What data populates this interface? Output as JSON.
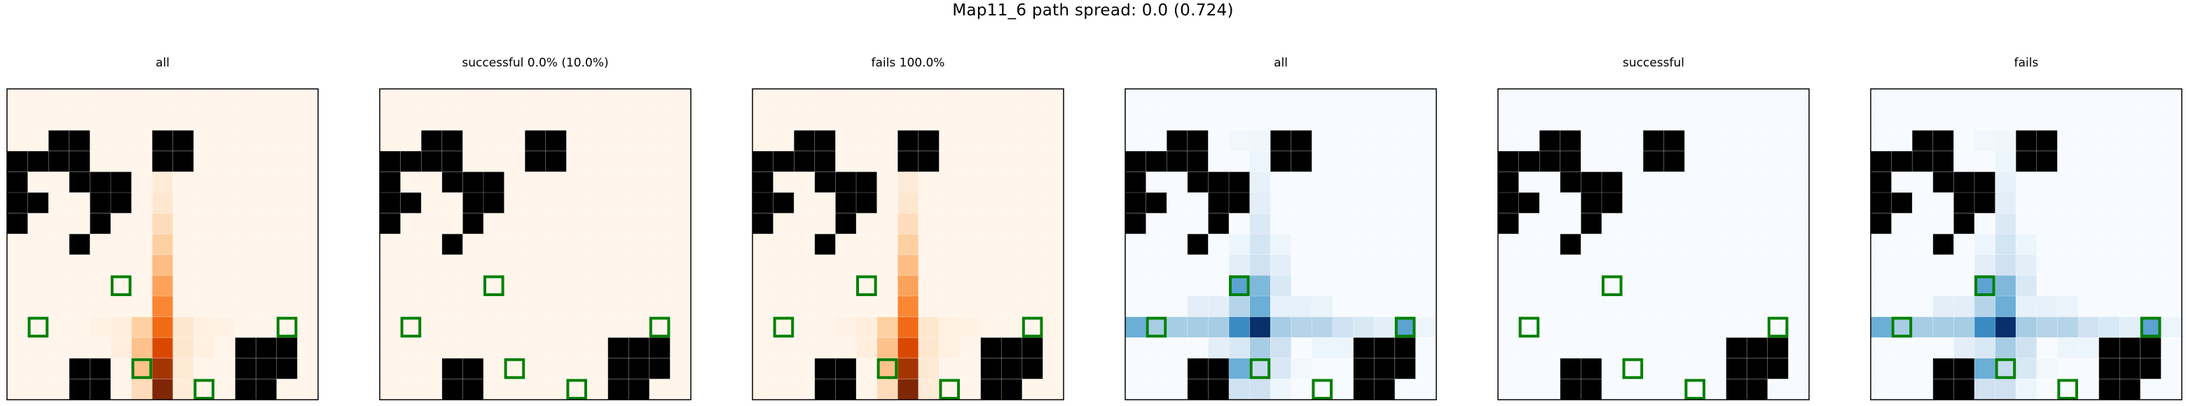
{
  "figure": {
    "suptitle": "Map11_6 path spread: 0.0 (0.724)"
  },
  "colors": {
    "wall": "#000000",
    "goal_outline": "#008000",
    "grid_line": "#ffffff",
    "oranges": [
      "#fff5eb",
      "#fee6ce",
      "#fdd0a2",
      "#fdae6b",
      "#fd8d3c",
      "#f16913",
      "#d94801",
      "#a63603",
      "#7f2704"
    ],
    "blues": [
      "#f7fbff",
      "#deebf7",
      "#c6dbef",
      "#9ecae1",
      "#6baed6",
      "#4292c6",
      "#2171b5",
      "#08519c",
      "#08306b"
    ]
  },
  "chart_data": {
    "type": "heatmap",
    "grid_size": [
      15,
      15
    ],
    "walls": [
      [
        2,
        2
      ],
      [
        2,
        3
      ],
      [
        2,
        7
      ],
      [
        2,
        8
      ],
      [
        3,
        0
      ],
      [
        3,
        1
      ],
      [
        3,
        2
      ],
      [
        3,
        3
      ],
      [
        3,
        7
      ],
      [
        3,
        8
      ],
      [
        4,
        0
      ],
      [
        4,
        3
      ],
      [
        4,
        4
      ],
      [
        4,
        5
      ],
      [
        5,
        0
      ],
      [
        5,
        1
      ],
      [
        5,
        4
      ],
      [
        5,
        5
      ],
      [
        6,
        0
      ],
      [
        6,
        4
      ],
      [
        7,
        3
      ],
      [
        12,
        11
      ],
      [
        12,
        12
      ],
      [
        12,
        13
      ],
      [
        13,
        3
      ],
      [
        13,
        4
      ],
      [
        13,
        11
      ],
      [
        13,
        12
      ],
      [
        13,
        13
      ],
      [
        14,
        3
      ],
      [
        14,
        4
      ],
      [
        14,
        11
      ],
      [
        14,
        12
      ]
    ],
    "goals": [
      [
        9,
        5
      ],
      [
        11,
        1
      ],
      [
        11,
        13
      ],
      [
        13,
        6
      ],
      [
        14,
        9
      ]
    ],
    "panels": [
      {
        "title": "all",
        "cmap": "oranges",
        "show_goals": true,
        "cells": [
          [
            3,
            7,
            0.05
          ],
          [
            4,
            7,
            0.08
          ],
          [
            5,
            7,
            0.12
          ],
          [
            6,
            7,
            0.18
          ],
          [
            7,
            7,
            0.25
          ],
          [
            8,
            7,
            0.32
          ],
          [
            9,
            7,
            0.42
          ],
          [
            10,
            7,
            0.52
          ],
          [
            11,
            7,
            0.62
          ],
          [
            12,
            7,
            0.75
          ],
          [
            13,
            7,
            0.88
          ],
          [
            14,
            7,
            1.0
          ],
          [
            11,
            6,
            0.25
          ],
          [
            12,
            6,
            0.3
          ],
          [
            13,
            6,
            0.3
          ],
          [
            14,
            6,
            0.18
          ],
          [
            11,
            8,
            0.12
          ],
          [
            12,
            8,
            0.12
          ],
          [
            13,
            8,
            0.1
          ],
          [
            14,
            8,
            0.08
          ],
          [
            11,
            5,
            0.06
          ],
          [
            12,
            5,
            0.06
          ],
          [
            11,
            9,
            0.04
          ],
          [
            12,
            9,
            0.04
          ],
          [
            11,
            4,
            0.03
          ],
          [
            11,
            10,
            0.03
          ]
        ]
      },
      {
        "title": "successful 0.0% (10.0%)",
        "cmap": "oranges",
        "show_goals": true,
        "cells": []
      },
      {
        "title": "fails 100.0%",
        "cmap": "oranges",
        "show_goals": true,
        "cells": [
          [
            3,
            7,
            0.05
          ],
          [
            4,
            7,
            0.08
          ],
          [
            5,
            7,
            0.12
          ],
          [
            6,
            7,
            0.18
          ],
          [
            7,
            7,
            0.25
          ],
          [
            8,
            7,
            0.32
          ],
          [
            9,
            7,
            0.42
          ],
          [
            10,
            7,
            0.52
          ],
          [
            11,
            7,
            0.62
          ],
          [
            12,
            7,
            0.75
          ],
          [
            13,
            7,
            0.88
          ],
          [
            14,
            7,
            1.0
          ],
          [
            11,
            6,
            0.25
          ],
          [
            12,
            6,
            0.3
          ],
          [
            13,
            6,
            0.3
          ],
          [
            14,
            6,
            0.18
          ],
          [
            11,
            8,
            0.12
          ],
          [
            12,
            8,
            0.12
          ],
          [
            13,
            8,
            0.1
          ],
          [
            14,
            8,
            0.08
          ],
          [
            11,
            5,
            0.06
          ],
          [
            12,
            5,
            0.06
          ],
          [
            11,
            9,
            0.04
          ],
          [
            12,
            9,
            0.04
          ],
          [
            11,
            4,
            0.03
          ],
          [
            11,
            10,
            0.03
          ]
        ]
      },
      {
        "title": "all",
        "cmap": "blues",
        "show_goals": true,
        "cells": [
          [
            2,
            6,
            0.04
          ],
          [
            3,
            6,
            0.05
          ],
          [
            4,
            6,
            0.08
          ],
          [
            5,
            6,
            0.1
          ],
          [
            6,
            6,
            0.14
          ],
          [
            7,
            6,
            0.18
          ],
          [
            8,
            6,
            0.2
          ],
          [
            9,
            6,
            0.45
          ],
          [
            10,
            6,
            0.5
          ],
          [
            12,
            6,
            0.35
          ],
          [
            13,
            6,
            0.25
          ],
          [
            14,
            6,
            0.2
          ],
          [
            2,
            5,
            0.03
          ],
          [
            7,
            5,
            0.05
          ],
          [
            8,
            5,
            0.1
          ],
          [
            9,
            5,
            0.55
          ],
          [
            10,
            5,
            0.3
          ],
          [
            12,
            5,
            0.15
          ],
          [
            13,
            5,
            0.5
          ],
          [
            14,
            5,
            0.2
          ],
          [
            7,
            7,
            0.05
          ],
          [
            8,
            7,
            0.1
          ],
          [
            9,
            7,
            0.15
          ],
          [
            10,
            7,
            0.15
          ],
          [
            12,
            7,
            0.2
          ],
          [
            13,
            7,
            0.15
          ],
          [
            14,
            7,
            0.05
          ],
          [
            11,
            0,
            0.5
          ],
          [
            11,
            1,
            0.35
          ],
          [
            11,
            2,
            0.35
          ],
          [
            11,
            3,
            0.35
          ],
          [
            11,
            4,
            0.35
          ],
          [
            11,
            5,
            0.65
          ],
          [
            11,
            6,
            1.0
          ],
          [
            11,
            7,
            0.35
          ],
          [
            11,
            8,
            0.3
          ],
          [
            11,
            9,
            0.3
          ],
          [
            11,
            10,
            0.2
          ],
          [
            11,
            11,
            0.15
          ],
          [
            11,
            12,
            0.1
          ],
          [
            11,
            13,
            0.55
          ],
          [
            11,
            14,
            0.05
          ],
          [
            10,
            3,
            0.1
          ],
          [
            10,
            4,
            0.1
          ],
          [
            10,
            7,
            0.08
          ],
          [
            10,
            8,
            0.08
          ],
          [
            10,
            9,
            0.06
          ],
          [
            12,
            4,
            0.1
          ],
          [
            12,
            5,
            0.15
          ],
          [
            12,
            9,
            0.05
          ],
          [
            12,
            10,
            0.05
          ],
          [
            13,
            8,
            0.03
          ],
          [
            14,
            5,
            0.2
          ]
        ]
      },
      {
        "title": "successful",
        "cmap": "blues",
        "show_goals": true,
        "cells": []
      },
      {
        "title": "fails",
        "cmap": "blues",
        "show_goals": true,
        "cells": [
          [
            2,
            6,
            0.04
          ],
          [
            3,
            6,
            0.05
          ],
          [
            4,
            6,
            0.08
          ],
          [
            5,
            6,
            0.1
          ],
          [
            6,
            6,
            0.14
          ],
          [
            7,
            6,
            0.18
          ],
          [
            8,
            6,
            0.2
          ],
          [
            9,
            6,
            0.45
          ],
          [
            10,
            6,
            0.5
          ],
          [
            12,
            6,
            0.35
          ],
          [
            13,
            6,
            0.25
          ],
          [
            14,
            6,
            0.2
          ],
          [
            2,
            5,
            0.03
          ],
          [
            7,
            5,
            0.05
          ],
          [
            8,
            5,
            0.1
          ],
          [
            9,
            5,
            0.55
          ],
          [
            10,
            5,
            0.3
          ],
          [
            12,
            5,
            0.15
          ],
          [
            13,
            5,
            0.5
          ],
          [
            14,
            5,
            0.2
          ],
          [
            7,
            7,
            0.05
          ],
          [
            8,
            7,
            0.1
          ],
          [
            9,
            7,
            0.15
          ],
          [
            10,
            7,
            0.15
          ],
          [
            12,
            7,
            0.2
          ],
          [
            13,
            7,
            0.15
          ],
          [
            14,
            7,
            0.05
          ],
          [
            11,
            0,
            0.5
          ],
          [
            11,
            1,
            0.35
          ],
          [
            11,
            2,
            0.35
          ],
          [
            11,
            3,
            0.35
          ],
          [
            11,
            4,
            0.35
          ],
          [
            11,
            5,
            0.65
          ],
          [
            11,
            6,
            1.0
          ],
          [
            11,
            7,
            0.35
          ],
          [
            11,
            8,
            0.3
          ],
          [
            11,
            9,
            0.3
          ],
          [
            11,
            10,
            0.2
          ],
          [
            11,
            11,
            0.15
          ],
          [
            11,
            12,
            0.1
          ],
          [
            11,
            13,
            0.55
          ],
          [
            11,
            14,
            0.05
          ],
          [
            10,
            3,
            0.1
          ],
          [
            10,
            4,
            0.1
          ],
          [
            10,
            7,
            0.08
          ],
          [
            10,
            8,
            0.08
          ],
          [
            10,
            9,
            0.06
          ],
          [
            12,
            4,
            0.1
          ],
          [
            12,
            5,
            0.15
          ],
          [
            12,
            9,
            0.05
          ],
          [
            12,
            10,
            0.05
          ],
          [
            13,
            8,
            0.03
          ],
          [
            14,
            5,
            0.2
          ]
        ]
      }
    ]
  }
}
